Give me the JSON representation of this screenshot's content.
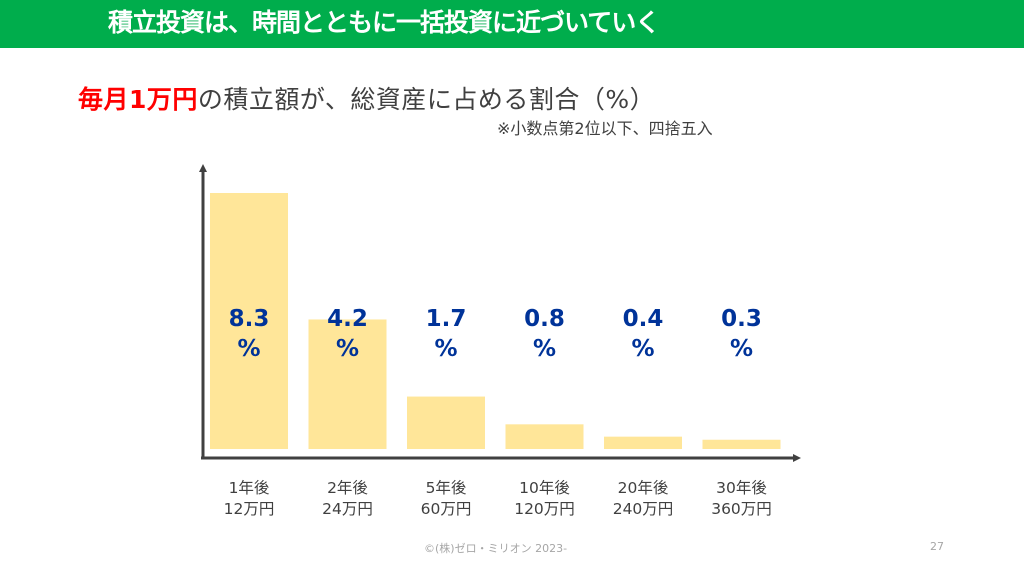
{
  "header": {
    "title": "積立投資は、時間とともに一括投資に近づいていく"
  },
  "subtitle": {
    "highlight": "毎月1万円",
    "rest": "の積立額が、総資産に占める割合（%）"
  },
  "note": "※小数点第2位以下、四捨五入",
  "colors": {
    "header_bg": "#00ad4c",
    "bar": "#ffe699",
    "value_label": "#003399",
    "highlight": "#ff0000",
    "axis": "#404040"
  },
  "chart_data": {
    "type": "bar",
    "title": "毎月1万円の積立額が、総資産に占める割合（%）",
    "categories": [
      {
        "line1": "1年後",
        "line2": "12万円"
      },
      {
        "line1": "2年後",
        "line2": "24万円"
      },
      {
        "line1": "5年後",
        "line2": "60万円"
      },
      {
        "line1": "10年後",
        "line2": "120万円"
      },
      {
        "line1": "20年後",
        "line2": "240万円"
      },
      {
        "line1": "30年後",
        "line2": "360万円"
      }
    ],
    "values": [
      8.3,
      4.2,
      1.7,
      0.8,
      0.4,
      0.3
    ],
    "value_labels": [
      "8.3",
      "4.2",
      "1.7",
      "0.8",
      "0.4",
      "0.3"
    ],
    "unit_label": "%",
    "xlabel": "",
    "ylabel": "",
    "ylim": [
      0,
      8.3
    ],
    "grid": false,
    "legend": "none"
  },
  "footer": {
    "copyright": "©(株)ゼロ・ミリオン 2023-",
    "page": "27"
  }
}
